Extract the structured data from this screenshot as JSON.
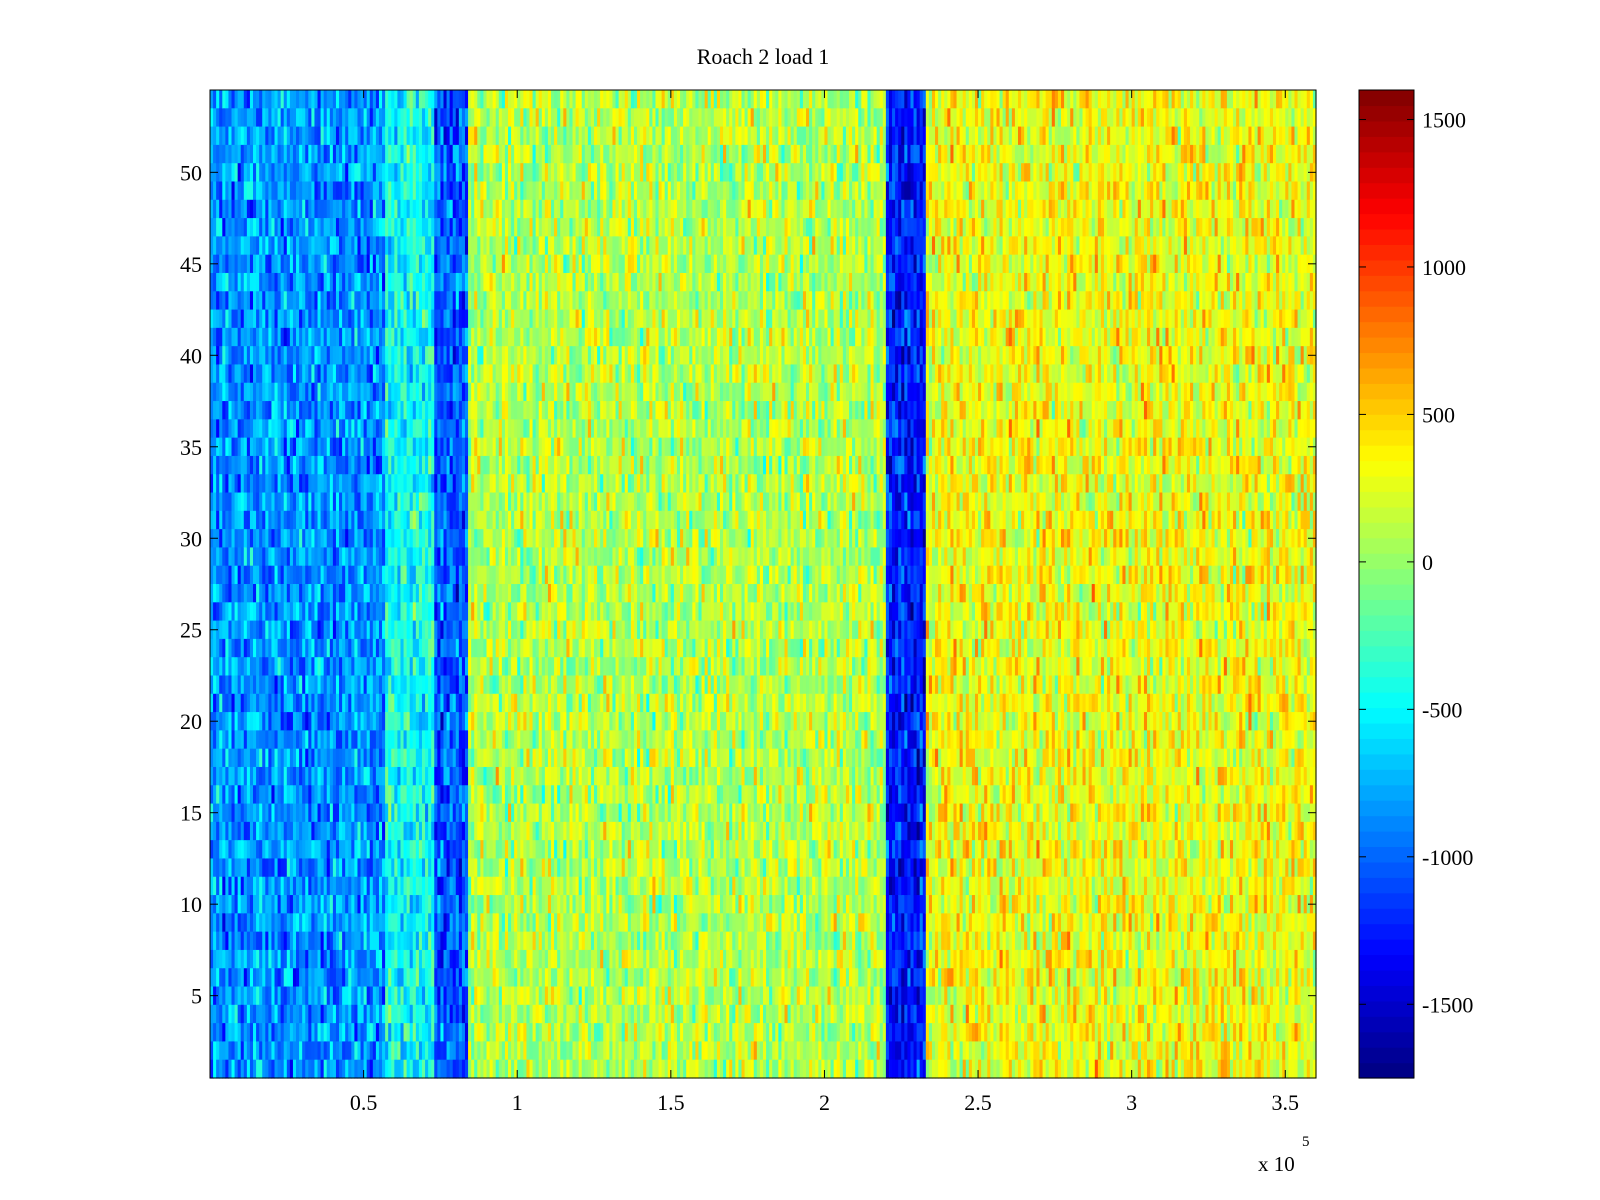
{
  "chart_data": {
    "type": "heatmap",
    "title": "Roach 2 load 1",
    "xlabel": "",
    "ylabel": "",
    "x_range": [
      0,
      360000
    ],
    "y_range": [
      0.5,
      54.5
    ],
    "x_ticks": [
      50000,
      100000,
      150000,
      200000,
      250000,
      300000,
      350000
    ],
    "x_tick_labels": [
      "0.5",
      "1",
      "1.5",
      "2",
      "2.5",
      "3",
      "3.5"
    ],
    "x_exponent_base": "x 10",
    "x_exponent_power": "5",
    "y_ticks": [
      5,
      10,
      15,
      20,
      25,
      30,
      35,
      40,
      45,
      50
    ],
    "y_tick_labels": [
      "5",
      "10",
      "15",
      "20",
      "25",
      "30",
      "35",
      "40",
      "45",
      "50"
    ],
    "rows": 54,
    "colormap": "jet",
    "colorbar": {
      "range": [
        -1750,
        1600
      ],
      "ticks": [
        -1500,
        -1000,
        -500,
        0,
        500,
        1000,
        1500
      ],
      "tick_labels": [
        "-1500",
        "-1000",
        "-500",
        "0",
        "500",
        "1000",
        "1500"
      ]
    },
    "column_bands": [
      {
        "x_start": 0,
        "x_end": 57000,
        "mean_value": -850
      },
      {
        "x_start": 57000,
        "x_end": 73000,
        "mean_value": -450
      },
      {
        "x_start": 73000,
        "x_end": 84500,
        "mean_value": -1050
      },
      {
        "x_start": 84500,
        "x_end": 220500,
        "mean_value": 100
      },
      {
        "x_start": 220500,
        "x_end": 233500,
        "mean_value": -1250
      },
      {
        "x_start": 233500,
        "x_end": 360000,
        "mean_value": 300
      }
    ],
    "grid": false,
    "colorbar_placement": "right"
  }
}
